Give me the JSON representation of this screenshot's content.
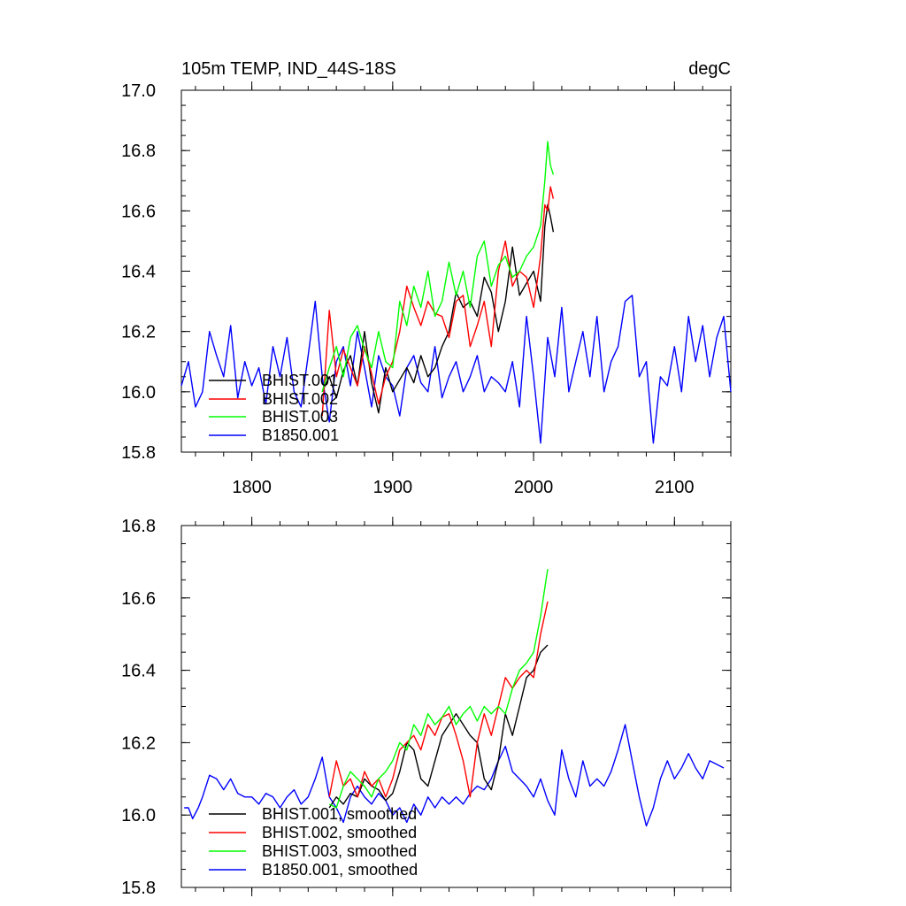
{
  "chart_data": [
    {
      "type": "line",
      "title": "105m TEMP, IND_44S-18S",
      "units": "degC",
      "xlabel": "",
      "ylabel": "",
      "xlim": [
        1750,
        2140
      ],
      "ylim": [
        15.8,
        17.0
      ],
      "xticks": [
        1800,
        1900,
        2000,
        2100
      ],
      "xtick_labels": [
        "1800",
        "1900",
        "2000",
        "2100"
      ],
      "yticks": [
        15.8,
        16.0,
        16.2,
        16.4,
        16.6,
        16.8,
        17.0
      ],
      "ytick_labels": [
        "15.8",
        "16.0",
        "16.2",
        "16.4",
        "16.6",
        "16.8",
        "17.0"
      ],
      "legend_position": "bottom-left",
      "series": [
        {
          "name": "BHIST.001",
          "color": "#000000",
          "x": [
            1850,
            1855,
            1860,
            1865,
            1870,
            1875,
            1880,
            1885,
            1890,
            1895,
            1900,
            1905,
            1910,
            1915,
            1920,
            1925,
            1930,
            1935,
            1940,
            1945,
            1950,
            1955,
            1960,
            1965,
            1970,
            1975,
            1980,
            1985,
            1990,
            1995,
            2000,
            2005,
            2008,
            2010,
            2012,
            2014
          ],
          "y": [
            16.0,
            16.05,
            15.98,
            16.07,
            16.12,
            16.02,
            16.2,
            16.03,
            15.93,
            16.08,
            16.0,
            16.04,
            16.08,
            16.03,
            16.12,
            16.05,
            16.08,
            16.15,
            16.2,
            16.33,
            16.28,
            16.3,
            16.25,
            16.38,
            16.33,
            16.2,
            16.3,
            16.48,
            16.32,
            16.36,
            16.4,
            16.3,
            16.55,
            16.62,
            16.58,
            16.53
          ]
        },
        {
          "name": "BHIST.002",
          "color": "#ff0000",
          "x": [
            1850,
            1855,
            1860,
            1865,
            1870,
            1875,
            1880,
            1885,
            1890,
            1895,
            1900,
            1905,
            1910,
            1915,
            1920,
            1925,
            1930,
            1935,
            1940,
            1945,
            1950,
            1955,
            1960,
            1965,
            1970,
            1975,
            1980,
            1985,
            1990,
            1995,
            2000,
            2005,
            2008,
            2010,
            2012,
            2014
          ],
          "y": [
            15.92,
            16.27,
            16.05,
            16.14,
            16.08,
            16.02,
            16.15,
            16.06,
            15.96,
            16.05,
            16.1,
            16.2,
            16.35,
            16.28,
            16.22,
            16.3,
            16.26,
            16.25,
            16.18,
            16.3,
            16.32,
            16.15,
            16.22,
            16.3,
            16.15,
            16.4,
            16.5,
            16.35,
            16.4,
            16.38,
            16.28,
            16.45,
            16.62,
            16.6,
            16.68,
            16.64
          ]
        },
        {
          "name": "BHIST.003",
          "color": "#00ff00",
          "x": [
            1850,
            1855,
            1860,
            1865,
            1870,
            1875,
            1880,
            1885,
            1890,
            1895,
            1900,
            1905,
            1910,
            1915,
            1920,
            1925,
            1930,
            1935,
            1940,
            1945,
            1950,
            1955,
            1960,
            1965,
            1970,
            1975,
            1980,
            1985,
            1990,
            1995,
            2000,
            2005,
            2008,
            2010,
            2012,
            2014
          ],
          "y": [
            16.0,
            16.08,
            16.15,
            16.05,
            16.18,
            16.22,
            16.14,
            16.08,
            16.2,
            16.1,
            16.08,
            16.3,
            16.22,
            16.35,
            16.28,
            16.4,
            16.25,
            16.3,
            16.43,
            16.32,
            16.4,
            16.28,
            16.45,
            16.5,
            16.35,
            16.42,
            16.45,
            16.38,
            16.4,
            16.45,
            16.48,
            16.55,
            16.7,
            16.83,
            16.75,
            16.72
          ]
        },
        {
          "name": "B1850.001",
          "color": "#0000ff",
          "x": [
            1750,
            1755,
            1760,
            1765,
            1770,
            1775,
            1780,
            1785,
            1790,
            1795,
            1800,
            1805,
            1810,
            1815,
            1820,
            1825,
            1830,
            1835,
            1840,
            1845,
            1850,
            1855,
            1860,
            1865,
            1870,
            1875,
            1880,
            1885,
            1890,
            1895,
            1900,
            1905,
            1910,
            1915,
            1920,
            1925,
            1930,
            1935,
            1940,
            1945,
            1950,
            1955,
            1960,
            1965,
            1970,
            1975,
            1980,
            1985,
            1990,
            1995,
            2000,
            2005,
            2010,
            2015,
            2020,
            2025,
            2030,
            2035,
            2040,
            2045,
            2050,
            2055,
            2060,
            2065,
            2070,
            2075,
            2080,
            2085,
            2090,
            2095,
            2100,
            2105,
            2110,
            2115,
            2120,
            2125,
            2130,
            2135,
            2140
          ],
          "y": [
            16.02,
            16.1,
            15.95,
            16.0,
            16.2,
            16.12,
            16.05,
            16.22,
            15.98,
            16.1,
            16.02,
            16.08,
            15.96,
            16.15,
            16.05,
            16.18,
            16.0,
            15.95,
            16.12,
            16.3,
            16.05,
            15.9,
            16.1,
            16.15,
            16.02,
            16.2,
            16.08,
            15.95,
            16.12,
            16.05,
            16.02,
            15.92,
            16.08,
            16.12,
            16.03,
            16.0,
            16.15,
            15.98,
            16.05,
            16.1,
            16.0,
            16.05,
            16.12,
            16.0,
            16.05,
            16.03,
            16.0,
            16.1,
            15.95,
            16.25,
            16.05,
            15.83,
            16.18,
            16.05,
            16.28,
            16.0,
            16.1,
            16.2,
            16.05,
            16.25,
            16.0,
            16.1,
            16.15,
            16.3,
            16.32,
            16.05,
            16.1,
            15.83,
            16.05,
            16.02,
            16.15,
            16.0,
            16.25,
            16.1,
            16.22,
            16.05,
            16.18,
            16.25,
            16.0
          ]
        }
      ],
      "legend": [
        "BHIST.001",
        "BHIST.002",
        "BHIST.003",
        "B1850.001"
      ]
    },
    {
      "type": "line",
      "title": "",
      "xlabel": "",
      "ylabel": "",
      "xlim": [
        1750,
        2140
      ],
      "ylim": [
        15.8,
        16.8
      ],
      "yticks": [
        15.8,
        16.0,
        16.2,
        16.4,
        16.6,
        16.8
      ],
      "ytick_labels": [
        "15.8",
        "16.0",
        "16.2",
        "16.4",
        "16.6",
        "16.8"
      ],
      "legend_position": "bottom-left",
      "series": [
        {
          "name": "BHIST.001, smoothed",
          "color": "#000000",
          "x": [
            1855,
            1860,
            1865,
            1870,
            1875,
            1880,
            1885,
            1890,
            1895,
            1900,
            1905,
            1910,
            1915,
            1920,
            1925,
            1930,
            1935,
            1940,
            1945,
            1950,
            1955,
            1960,
            1965,
            1970,
            1975,
            1980,
            1985,
            1990,
            1995,
            2000,
            2005,
            2010
          ],
          "y": [
            16.02,
            16.05,
            16.03,
            16.06,
            16.05,
            16.1,
            16.08,
            16.07,
            16.04,
            16.06,
            16.12,
            16.2,
            16.18,
            16.1,
            16.08,
            16.15,
            16.22,
            16.25,
            16.28,
            16.25,
            16.22,
            16.2,
            16.1,
            16.07,
            16.15,
            16.28,
            16.22,
            16.3,
            16.38,
            16.4,
            16.45,
            16.47
          ]
        },
        {
          "name": "BHIST.002, smoothed",
          "color": "#ff0000",
          "x": [
            1855,
            1860,
            1865,
            1870,
            1875,
            1880,
            1885,
            1890,
            1895,
            1900,
            1905,
            1910,
            1915,
            1920,
            1925,
            1930,
            1935,
            1940,
            1945,
            1950,
            1955,
            1960,
            1965,
            1970,
            1975,
            1980,
            1985,
            1990,
            1995,
            2000,
            2005,
            2010
          ],
          "y": [
            16.05,
            16.15,
            16.08,
            16.1,
            16.05,
            16.12,
            16.08,
            16.1,
            16.05,
            16.1,
            16.18,
            16.2,
            16.22,
            16.18,
            16.25,
            16.22,
            16.27,
            16.28,
            16.22,
            16.15,
            16.05,
            16.2,
            16.28,
            16.22,
            16.3,
            16.38,
            16.35,
            16.38,
            16.4,
            16.38,
            16.5,
            16.59
          ]
        },
        {
          "name": "BHIST.003, smoothed",
          "color": "#00ff00",
          "x": [
            1855,
            1860,
            1865,
            1870,
            1875,
            1880,
            1885,
            1890,
            1895,
            1900,
            1905,
            1910,
            1915,
            1920,
            1925,
            1930,
            1935,
            1940,
            1945,
            1950,
            1955,
            1960,
            1965,
            1970,
            1975,
            1980,
            1985,
            1990,
            1995,
            2000,
            2005,
            2010
          ],
          "y": [
            16.03,
            16.02,
            16.08,
            16.12,
            16.1,
            16.08,
            16.05,
            16.1,
            16.12,
            16.15,
            16.2,
            16.18,
            16.25,
            16.22,
            16.28,
            16.25,
            16.27,
            16.3,
            16.25,
            16.28,
            16.3,
            16.26,
            16.3,
            16.28,
            16.3,
            16.28,
            16.35,
            16.4,
            16.42,
            16.45,
            16.55,
            16.68
          ]
        },
        {
          "name": "B1850.001, smoothed",
          "color": "#0000ff",
          "x": [
            1752,
            1755,
            1758,
            1762,
            1765,
            1770,
            1775,
            1780,
            1785,
            1790,
            1795,
            1800,
            1805,
            1810,
            1815,
            1820,
            1825,
            1830,
            1835,
            1840,
            1845,
            1850,
            1855,
            1860,
            1865,
            1870,
            1875,
            1880,
            1885,
            1890,
            1895,
            1900,
            1905,
            1910,
            1915,
            1920,
            1925,
            1930,
            1935,
            1940,
            1945,
            1950,
            1955,
            1960,
            1965,
            1970,
            1975,
            1980,
            1985,
            1990,
            1995,
            2000,
            2005,
            2010,
            2015,
            2020,
            2025,
            2030,
            2035,
            2040,
            2045,
            2050,
            2055,
            2060,
            2065,
            2070,
            2075,
            2080,
            2085,
            2090,
            2095,
            2100,
            2105,
            2110,
            2115,
            2120,
            2125,
            2130,
            2135
          ],
          "y": [
            16.02,
            16.02,
            15.99,
            16.02,
            16.05,
            16.11,
            16.1,
            16.07,
            16.1,
            16.06,
            16.05,
            16.05,
            16.03,
            16.06,
            16.05,
            16.02,
            16.05,
            16.07,
            16.03,
            16.05,
            16.1,
            16.16,
            16.05,
            16.02,
            15.98,
            16.05,
            16.08,
            16.05,
            16.03,
            16.06,
            16.04,
            16.0,
            16.02,
            15.98,
            16.03,
            16.0,
            16.05,
            16.02,
            16.05,
            16.03,
            16.05,
            16.03,
            16.06,
            16.08,
            16.07,
            16.1,
            16.15,
            16.19,
            16.12,
            16.1,
            16.08,
            16.05,
            16.1,
            16.04,
            16.0,
            16.18,
            16.1,
            16.05,
            16.15,
            16.08,
            16.1,
            16.08,
            16.12,
            16.18,
            16.25,
            16.15,
            16.05,
            15.97,
            16.02,
            16.1,
            16.15,
            16.1,
            16.13,
            16.17,
            16.13,
            16.1,
            16.15,
            16.14,
            16.13
          ]
        }
      ],
      "legend": [
        "BHIST.001, smoothed",
        "BHIST.002, smoothed",
        "BHIST.003, smoothed",
        "B1850.001, smoothed"
      ]
    }
  ]
}
